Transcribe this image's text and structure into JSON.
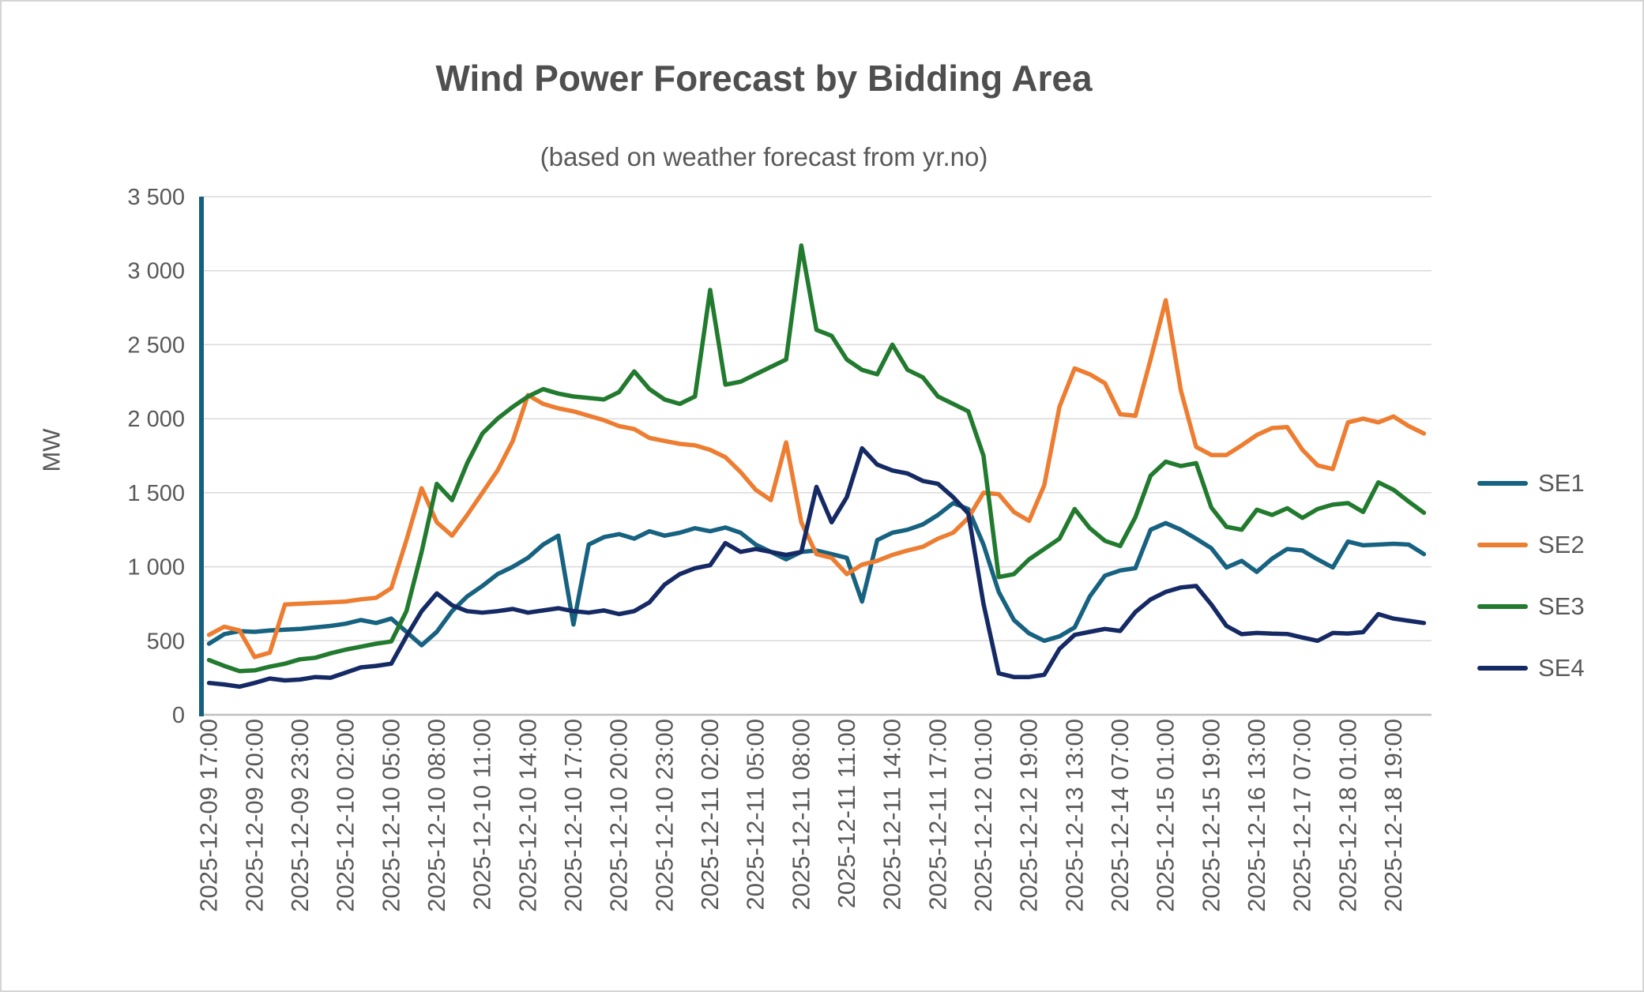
{
  "header": {
    "title": "Wind Power Forecast by Bidding Area",
    "subtitle": "(based on weather forecast from yr.no)"
  },
  "colors": {
    "title_text": "#4f4f4f",
    "axis_text": "#595959",
    "gridline": "#d9d9d9",
    "y_axis_line": "#14607e",
    "x_axis_line": "#bfbfbf",
    "background": "#ffffff",
    "border": "#d4d4d4"
  },
  "y_axis": {
    "title": "MW",
    "tick_labels": [
      "0",
      "500",
      "1 000",
      "1 500",
      "2 000",
      "2 500",
      "3 000",
      "3 500"
    ],
    "tick_values": [
      0,
      500,
      1000,
      1500,
      2000,
      2500,
      3000,
      3500
    ]
  },
  "chart_data": {
    "type": "line",
    "title": "Wind Power Forecast by Bidding Area",
    "subtitle": "(based on weather forecast from yr.no)",
    "xlabel": "",
    "ylabel": "MW",
    "ylim": [
      0,
      3500
    ],
    "y_tick_step": 500,
    "grid": "horizontal",
    "legend_position": "right",
    "x_label_every_n_points": 3,
    "x_tick_labels": [
      "2025-12-09 17:00",
      "2025-12-09 20:00",
      "2025-12-09 23:00",
      "2025-12-10 02:00",
      "2025-12-10 05:00",
      "2025-12-10 08:00",
      "2025-12-10 11:00",
      "2025-12-10 14:00",
      "2025-12-10 17:00",
      "2025-12-10 20:00",
      "2025-12-10 23:00",
      "2025-12-11 02:00",
      "2025-12-11 05:00",
      "2025-12-11 08:00",
      "2025-12-11 11:00",
      "2025-12-11 14:00",
      "2025-12-11 17:00",
      "2025-12-12 01:00",
      "2025-12-12 19:00",
      "2025-12-13 13:00",
      "2025-12-14 07:00",
      "2025-12-15 01:00",
      "2025-12-15 19:00",
      "2025-12-16 13:00",
      "2025-12-17 07:00",
      "2025-12-18 01:00",
      "2025-12-18 19:00"
    ],
    "series": [
      {
        "name": "SE1",
        "color": "#166280",
        "values": [
          480,
          545,
          565,
          560,
          570,
          575,
          580,
          590,
          600,
          615,
          640,
          620,
          650,
          560,
          470,
          560,
          700,
          800,
          870,
          950,
          1000,
          1060,
          1150,
          1210,
          610,
          1150,
          1200,
          1220,
          1190,
          1240,
          1210,
          1230,
          1260,
          1240,
          1265,
          1230,
          1150,
          1100,
          1050,
          1100,
          1110,
          1085,
          1060,
          765,
          1180,
          1230,
          1250,
          1286,
          1350,
          1430,
          1390,
          1150,
          830,
          640,
          550,
          500,
          530,
          590,
          800,
          940,
          975,
          990,
          1250,
          1295,
          1250,
          1190,
          1125,
          995,
          1040,
          965,
          1055,
          1120,
          1110,
          1050,
          995,
          1170,
          1145,
          1150,
          1155,
          1150,
          1085
        ]
      },
      {
        "name": "SE2",
        "color": "#ed7d31",
        "values": [
          540,
          595,
          570,
          390,
          420,
          745,
          750,
          755,
          760,
          765,
          780,
          790,
          855,
          1180,
          1530,
          1300,
          1210,
          1350,
          1500,
          1650,
          1850,
          2160,
          2100,
          2070,
          2050,
          2020,
          1990,
          1950,
          1930,
          1870,
          1850,
          1830,
          1820,
          1790,
          1740,
          1640,
          1520,
          1450,
          1840,
          1300,
          1085,
          1060,
          950,
          1015,
          1040,
          1080,
          1110,
          1135,
          1190,
          1230,
          1330,
          1500,
          1490,
          1370,
          1310,
          1550,
          2080,
          2340,
          2300,
          2240,
          2030,
          2020,
          2400,
          2800,
          2190,
          1810,
          1755,
          1755,
          1820,
          1890,
          1937,
          1943,
          1790,
          1685,
          1660,
          1975,
          2000,
          1975,
          2015,
          1950,
          1900
        ]
      },
      {
        "name": "SE3",
        "color": "#217a2e",
        "values": [
          370,
          330,
          295,
          300,
          325,
          345,
          375,
          385,
          415,
          440,
          460,
          480,
          495,
          700,
          1100,
          1560,
          1450,
          1700,
          1900,
          2000,
          2080,
          2150,
          2200,
          2170,
          2150,
          2140,
          2130,
          2180,
          2320,
          2200,
          2130,
          2100,
          2150,
          2870,
          2230,
          2250,
          2300,
          2350,
          2400,
          3170,
          2600,
          2560,
          2400,
          2330,
          2300,
          2500,
          2330,
          2280,
          2150,
          2100,
          2050,
          1750,
          930,
          950,
          1050,
          1120,
          1190,
          1390,
          1260,
          1175,
          1140,
          1335,
          1615,
          1710,
          1680,
          1700,
          1400,
          1270,
          1250,
          1385,
          1350,
          1395,
          1330,
          1390,
          1420,
          1430,
          1370,
          1570,
          1520,
          1440,
          1365
        ]
      },
      {
        "name": "SE4",
        "color": "#152a64",
        "values": [
          215,
          205,
          190,
          215,
          245,
          232,
          238,
          255,
          250,
          285,
          320,
          330,
          345,
          530,
          700,
          820,
          740,
          700,
          690,
          700,
          715,
          690,
          705,
          720,
          700,
          690,
          705,
          680,
          700,
          760,
          880,
          950,
          990,
          1010,
          1160,
          1100,
          1120,
          1100,
          1080,
          1100,
          1540,
          1300,
          1470,
          1800,
          1690,
          1650,
          1630,
          1580,
          1560,
          1470,
          1360,
          750,
          280,
          255,
          255,
          270,
          445,
          540,
          560,
          580,
          566,
          694,
          779,
          830,
          860,
          870,
          745,
          600,
          545,
          553,
          548,
          546,
          522,
          500,
          553,
          549,
          558,
          680,
          650,
          635,
          620
        ]
      }
    ]
  }
}
